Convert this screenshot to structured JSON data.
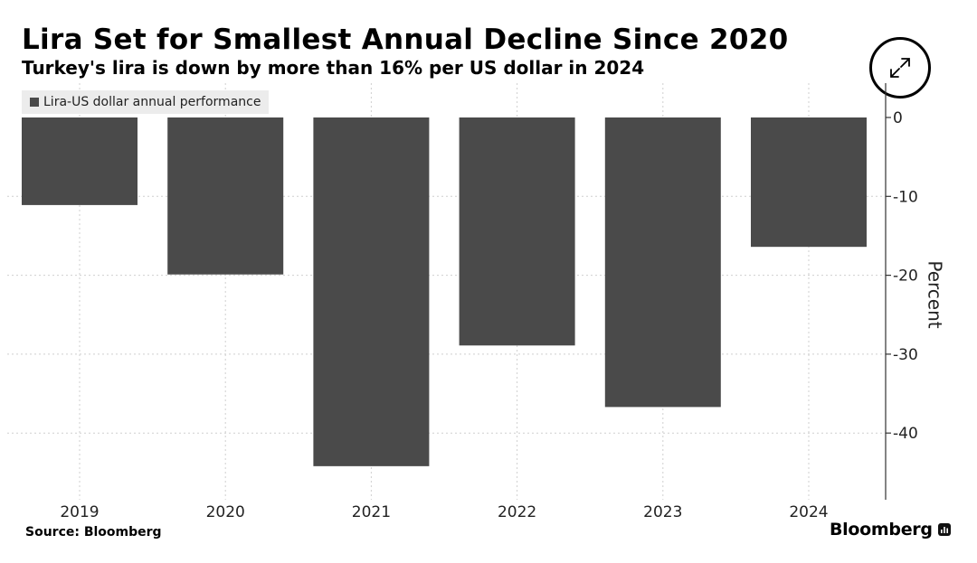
{
  "header": {
    "title": "Lira Set for Smallest Annual Decline Since 2020",
    "subtitle": "Turkey's lira is down by more than 16% per US dollar in 2024"
  },
  "legend": {
    "label": "Lira-US dollar annual performance",
    "color": "#4a4a4a"
  },
  "footer": {
    "source": "Source: Bloomberg",
    "brand": "Bloomberg"
  },
  "icons": {
    "expand": "expand-icon",
    "brand_mark": "bloomberg-chart-icon"
  },
  "chart_data": {
    "type": "bar",
    "categories": [
      "2019",
      "2020",
      "2021",
      "2022",
      "2023",
      "2024"
    ],
    "series": [
      {
        "name": "Lira-US dollar annual performance",
        "values": [
          -11.1,
          -19.9,
          -44.2,
          -28.9,
          -36.7,
          -16.4
        ],
        "color": "#4a4a4a"
      }
    ],
    "ylabel": "Percent",
    "ylim": [
      -48,
      4
    ],
    "yticks": [
      0,
      -10,
      -20,
      -30,
      -40
    ],
    "ytick_labels": [
      "0",
      "-10",
      "-20",
      "-30",
      "-40"
    ],
    "grid": true,
    "y_axis_position": "right",
    "legend_position": "top-left"
  }
}
